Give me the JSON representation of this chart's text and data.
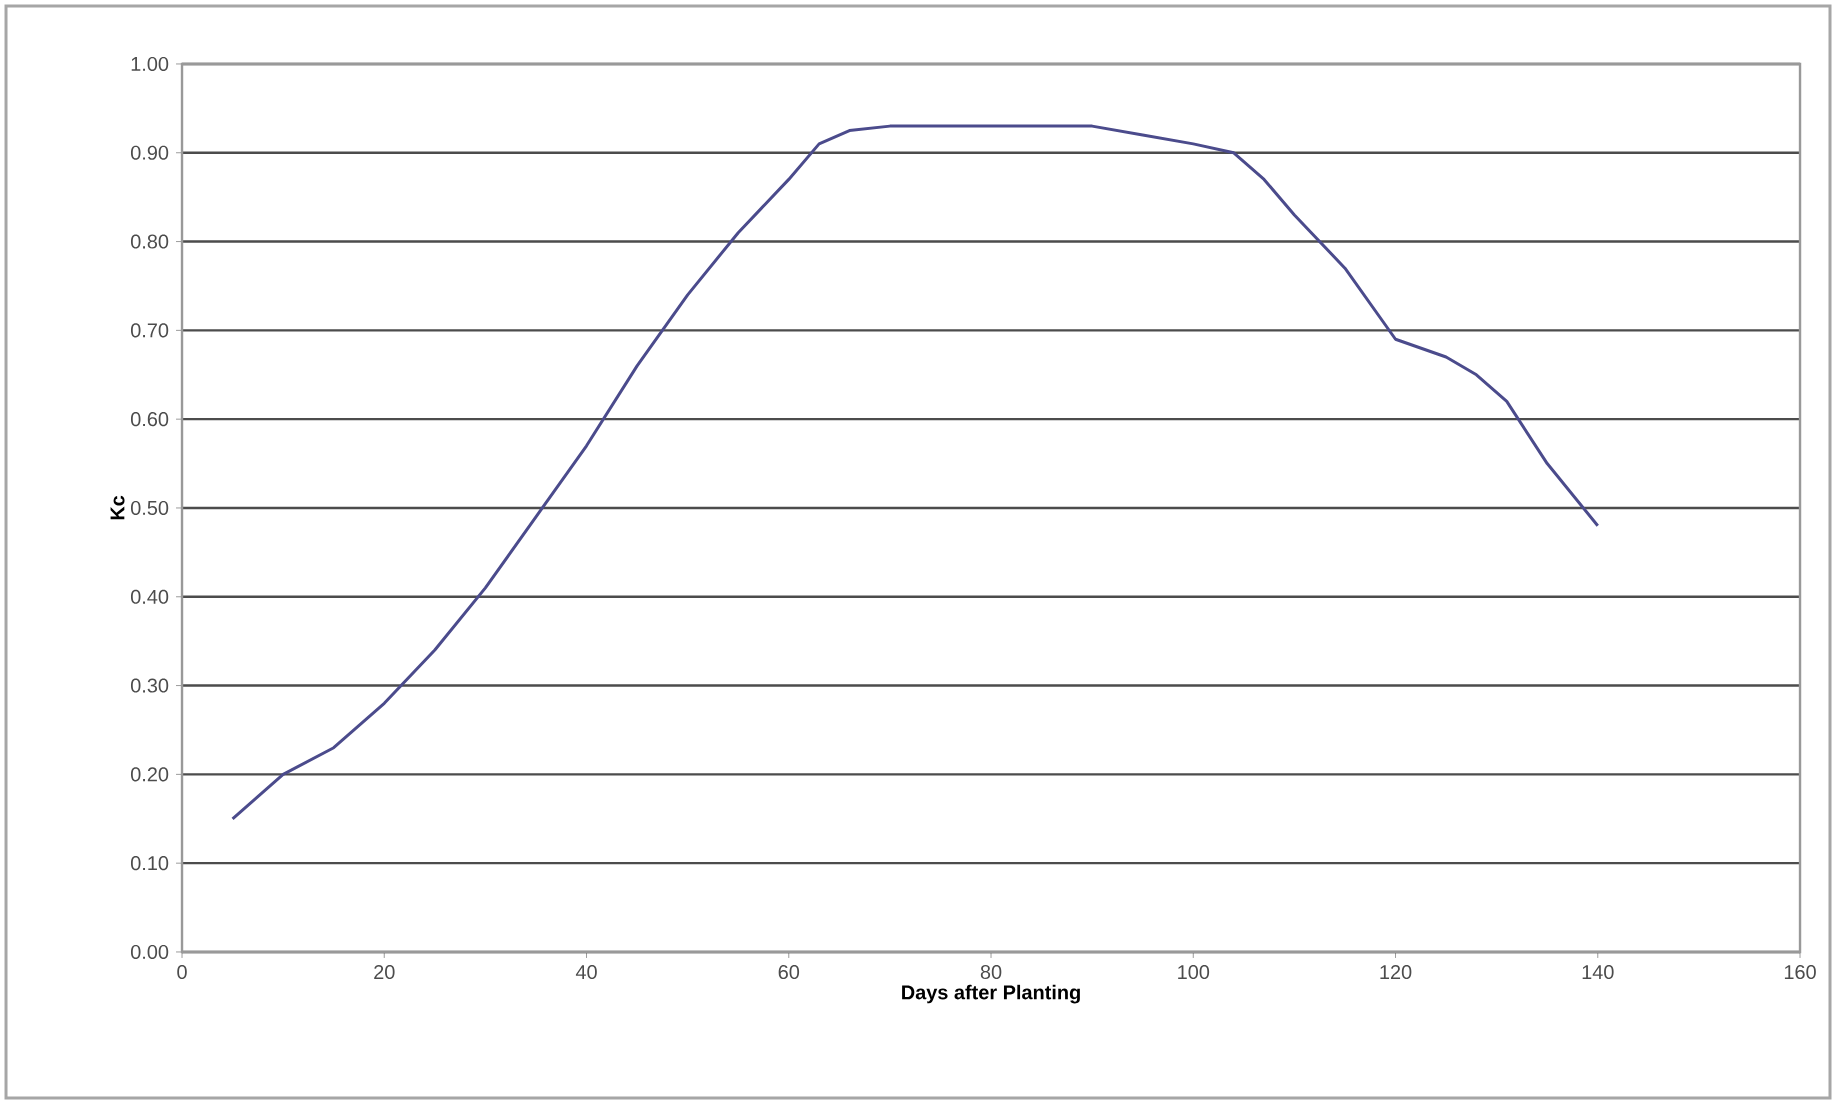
{
  "chart_data": {
    "type": "line",
    "xlabel": "Days after Planting",
    "ylabel": "Kc",
    "x": [
      5,
      10,
      15,
      20,
      25,
      30,
      35,
      40,
      45,
      50,
      55,
      60,
      63,
      66,
      70,
      80,
      90,
      95,
      100,
      104,
      107,
      110,
      115,
      120,
      125,
      128,
      131,
      135,
      140
    ],
    "values": [
      0.15,
      0.2,
      0.23,
      0.28,
      0.34,
      0.41,
      0.49,
      0.57,
      0.66,
      0.74,
      0.81,
      0.87,
      0.91,
      0.925,
      0.93,
      0.93,
      0.93,
      0.92,
      0.91,
      0.9,
      0.87,
      0.83,
      0.77,
      0.69,
      0.67,
      0.65,
      0.62,
      0.55,
      0.48
    ],
    "color": "#4b4b8c",
    "xlim": [
      0,
      160
    ],
    "ylim": [
      0,
      1
    ],
    "xticks": [
      0,
      20,
      40,
      60,
      80,
      100,
      120,
      140,
      160
    ],
    "yticks": [
      {
        "value": 0,
        "label": "0.00"
      },
      {
        "value": 0.1,
        "label": "0.10"
      },
      {
        "value": 0.2,
        "label": "0.20"
      },
      {
        "value": 0.3,
        "label": "0.30"
      },
      {
        "value": 0.4,
        "label": "0.40"
      },
      {
        "value": 0.5,
        "label": "0.50"
      },
      {
        "value": 0.6,
        "label": "0.60"
      },
      {
        "value": 0.7,
        "label": "0.70"
      },
      {
        "value": 0.8,
        "label": "0.80"
      },
      {
        "value": 0.9,
        "label": "0.90"
      },
      {
        "value": 1,
        "label": "1.00"
      }
    ],
    "grid": "y",
    "marker": "none",
    "line_style": "solid"
  }
}
